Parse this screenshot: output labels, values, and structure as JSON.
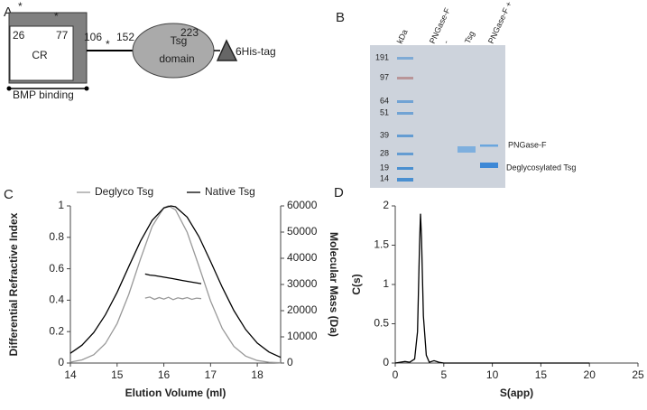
{
  "panel_labels": [
    "A",
    "B",
    "C",
    "D"
  ],
  "diagram": {
    "asterisk_1": "*",
    "asterisk_2": "*",
    "asterisk_3": "*",
    "start_cr": "26",
    "end_cr": "77",
    "cr": "CR",
    "res_106": "106",
    "res_152": "152",
    "res_223": "223",
    "tsg": "Tsg",
    "domain": "domain",
    "tag": "6His-tag",
    "bmp": "BMP binding"
  },
  "gel": {
    "lanes": [
      "kDa",
      "PNGase-F",
      "-",
      "Tsg",
      "PNGase-F + Tsg"
    ],
    "markers": [
      "191",
      "97",
      "64",
      "51",
      "39",
      "28",
      "19",
      "14"
    ],
    "band_labels": [
      "PNGase-F",
      "Deglycosylated Tsg"
    ]
  },
  "chart_data": [
    {
      "type": "line",
      "xlabel": "Elution Volume (ml)",
      "ylabel": "Differential Refractive Index",
      "y2label": "Molecular Mass (Da)",
      "xlim": [
        14,
        18.5
      ],
      "xticks": [
        14,
        15,
        16,
        17,
        18
      ],
      "ylim": [
        0,
        1
      ],
      "yticks": [
        0,
        0.2,
        0.4,
        0.6,
        0.8,
        1
      ],
      "y2lim": [
        0,
        60000
      ],
      "y2ticks": [
        0,
        10000,
        20000,
        30000,
        40000,
        50000,
        60000
      ],
      "legend": "top",
      "series": [
        {
          "name": "Deglyco Tsg",
          "color": "#999999",
          "x": [
            14,
            14.25,
            14.5,
            14.75,
            15,
            15.25,
            15.5,
            15.75,
            16,
            16.1,
            16.25,
            16.5,
            16.75,
            17,
            17.25,
            17.5,
            17.75,
            18,
            18.25,
            18.5
          ],
          "values": [
            0.006,
            0.02,
            0.053,
            0.124,
            0.251,
            0.437,
            0.662,
            0.869,
            0.989,
            1,
            0.975,
            0.833,
            0.617,
            0.396,
            0.22,
            0.106,
            0.044,
            0.016,
            0.005,
            0.002
          ]
        },
        {
          "name": "Native Tsg",
          "color": "#000000",
          "x": [
            14,
            14.25,
            14.5,
            14.75,
            15,
            15.25,
            15.5,
            15.75,
            16,
            16.15,
            16.25,
            16.5,
            16.75,
            17,
            17.25,
            17.5,
            17.75,
            18,
            18.25,
            18.5
          ],
          "values": [
            0.062,
            0.114,
            0.194,
            0.307,
            0.45,
            0.614,
            0.775,
            0.908,
            0.987,
            1,
            0.994,
            0.929,
            0.805,
            0.647,
            0.482,
            0.334,
            0.214,
            0.127,
            0.07,
            0.036
          ]
        },
        {
          "axis": "y2",
          "color": "#999999",
          "x": [
            15.6,
            15.7,
            15.8,
            15.9,
            16,
            16.1,
            16.2,
            16.3,
            16.4,
            16.5,
            16.6,
            16.7,
            16.8
          ],
          "values": [
            24800,
            25200,
            24300,
            25000,
            24400,
            25100,
            24200,
            24900,
            24500,
            25000,
            24300,
            24800,
            24600
          ]
        },
        {
          "axis": "y2",
          "color": "#000000",
          "x": [
            15.6,
            15.7,
            15.8,
            16,
            16.2,
            16.4,
            16.6,
            16.8
          ],
          "values": [
            34000,
            33600,
            33400,
            32800,
            32200,
            31500,
            30900,
            30300
          ]
        }
      ]
    },
    {
      "type": "line",
      "xlabel": "S(app)",
      "ylabel": "C(s)",
      "xlim": [
        0,
        25
      ],
      "xticks": [
        0,
        5,
        10,
        15,
        20,
        25
      ],
      "ylim": [
        0,
        2
      ],
      "yticks": [
        0,
        0.5,
        1,
        1.5,
        2
      ],
      "series": [
        {
          "color": "#000000",
          "x": [
            0,
            0.5,
            1,
            1.5,
            2,
            2.3,
            2.5,
            2.6,
            2.7,
            2.9,
            3.2,
            3.5,
            4,
            4.5,
            5,
            10,
            15,
            20
          ],
          "values": [
            0,
            0.01,
            0.02,
            0.01,
            0.05,
            0.4,
            1.5,
            1.9,
            1.6,
            0.6,
            0.1,
            0.01,
            0.03,
            0.01,
            0,
            0,
            0,
            0
          ]
        }
      ]
    }
  ]
}
